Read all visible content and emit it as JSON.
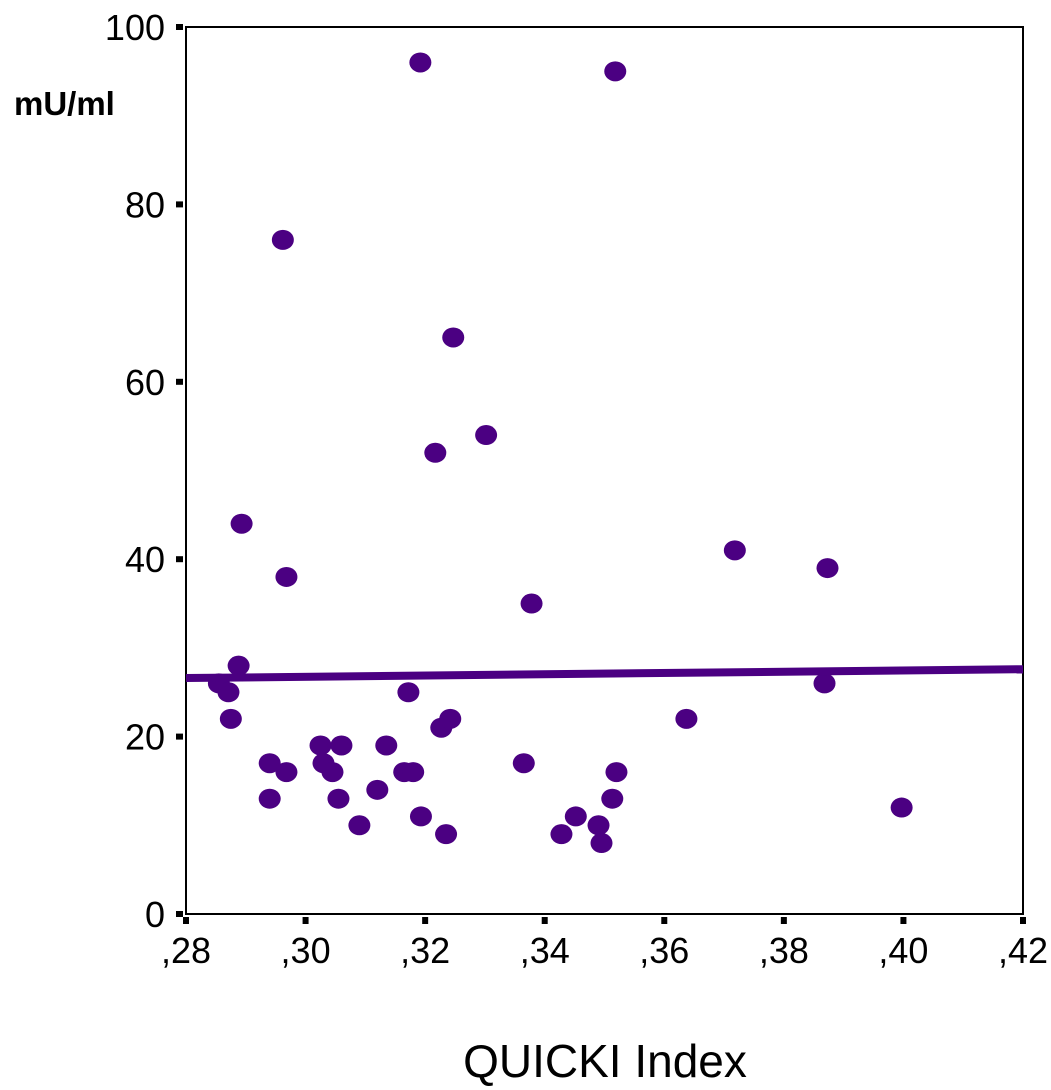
{
  "chart_data": {
    "type": "scatter",
    "title": "",
    "xlabel": "QUICKI Index",
    "ylabel": "mU/ml",
    "xlim": [
      0.28,
      0.42
    ],
    "ylim": [
      0,
      100
    ],
    "x_ticks": [
      ",28",
      ",30",
      ",32",
      ",34",
      ",36",
      ",38",
      ",40",
      ",42"
    ],
    "y_ticks": [
      "0",
      "20",
      "40",
      "60",
      "80",
      "100"
    ],
    "grid": false,
    "legend": "none",
    "colors": {
      "points": "#4b0082",
      "fit_line": "#4b0082"
    },
    "series": [
      {
        "points": [
          [
            0.2855,
            26
          ],
          [
            0.2871,
            25
          ],
          [
            0.2875,
            22
          ],
          [
            0.2888,
            28
          ],
          [
            0.2893,
            44
          ],
          [
            0.294,
            17
          ],
          [
            0.294,
            13
          ],
          [
            0.2962,
            76
          ],
          [
            0.2968,
            38
          ],
          [
            0.2968,
            16
          ],
          [
            0.3025,
            19
          ],
          [
            0.303,
            17
          ],
          [
            0.3045,
            16
          ],
          [
            0.3055,
            13
          ],
          [
            0.306,
            19
          ],
          [
            0.309,
            10
          ],
          [
            0.312,
            14
          ],
          [
            0.3135,
            19
          ],
          [
            0.3165,
            16
          ],
          [
            0.3172,
            25
          ],
          [
            0.318,
            16
          ],
          [
            0.3192,
            96
          ],
          [
            0.3193,
            11
          ],
          [
            0.3217,
            52
          ],
          [
            0.3227,
            21
          ],
          [
            0.3235,
            9
          ],
          [
            0.3242,
            22
          ],
          [
            0.3247,
            65
          ],
          [
            0.3302,
            54
          ],
          [
            0.3365,
            17
          ],
          [
            0.3378,
            35
          ],
          [
            0.3428,
            9
          ],
          [
            0.3452,
            11
          ],
          [
            0.349,
            10
          ],
          [
            0.3495,
            8
          ],
          [
            0.3513,
            13
          ],
          [
            0.3518,
            95
          ],
          [
            0.352,
            16
          ],
          [
            0.3637,
            22
          ],
          [
            0.3718,
            41
          ],
          [
            0.3868,
            26
          ],
          [
            0.3873,
            39
          ],
          [
            0.3997,
            12
          ]
        ]
      }
    ],
    "fit_line": {
      "x": [
        0.28,
        0.42
      ],
      "y": [
        26.6,
        27.6
      ]
    }
  }
}
